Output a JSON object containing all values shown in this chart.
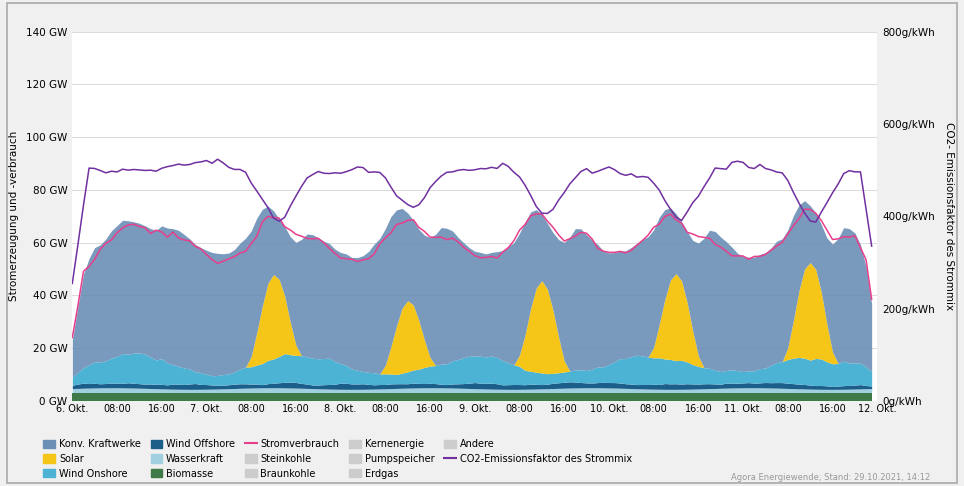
{
  "ylabel_left": "Stromerzeugung und -verbrauch",
  "ylabel_right": "CO2- Emissionsfaktor des Strommix",
  "ytick_labels_left": [
    "0 GW",
    "20 GW",
    "40 GW",
    "60 GW",
    "80 GW",
    "100 GW",
    "120 GW",
    "140 GW"
  ],
  "ytick_labels_right": [
    "0g/kWh",
    "200g/kWh",
    "400g/kWh",
    "600g/kWh",
    "800g/kWh"
  ],
  "colors": {
    "konv_kraftwerke": "#6b8fb5",
    "solar": "#f5c518",
    "wind_onshore": "#4db3d5",
    "wind_offshore": "#1b5e8a",
    "wasserkraft": "#a0cfe0",
    "biomasse": "#3d7a47",
    "stromverbrauch": "#e83e8c",
    "co2": "#7030a0"
  },
  "source_text": "Agora Energiewende; Stand: 29.10.2021, 14:12",
  "outer_bg": "#f0f0f0",
  "plot_bg": "#ffffff"
}
